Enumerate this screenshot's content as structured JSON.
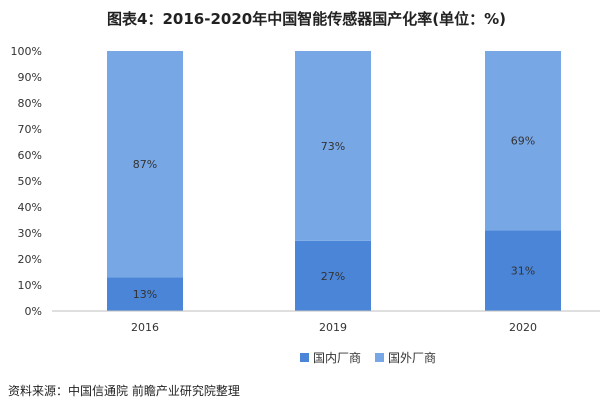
{
  "chart_data": {
    "type": "bar",
    "stacked": true,
    "percent_stacked": true,
    "title": "图表4：2016-2020年中国智能传感器国产化率(单位：%)",
    "categories": [
      "2016",
      "2019",
      "2020"
    ],
    "series": [
      {
        "name": "国内厂商",
        "values": [
          13,
          27,
          31
        ],
        "labels": [
          "13%",
          "27%",
          "31%"
        ],
        "color": "#4a85d8"
      },
      {
        "name": "国外厂商",
        "values": [
          87,
          73,
          69
        ],
        "labels": [
          "87%",
          "73%",
          "69%"
        ],
        "color": "#78a7e6"
      }
    ],
    "ylim": [
      0,
      100
    ],
    "yticks": [
      0,
      10,
      20,
      30,
      40,
      50,
      60,
      70,
      80,
      90,
      100
    ],
    "ytick_labels": [
      "0%",
      "10%",
      "20%",
      "30%",
      "40%",
      "50%",
      "60%",
      "70%",
      "80%",
      "90%",
      "100%"
    ],
    "xlabel": "",
    "ylabel": "",
    "grid": false,
    "legend_position": "bottom"
  },
  "source_note": "资料来源：中国信通院 前瞻产业研究院整理",
  "colors": {
    "domestic": "#4a85d8",
    "foreign": "#78a7e6",
    "axis": "#bfbfbf",
    "label": "#333333"
  }
}
